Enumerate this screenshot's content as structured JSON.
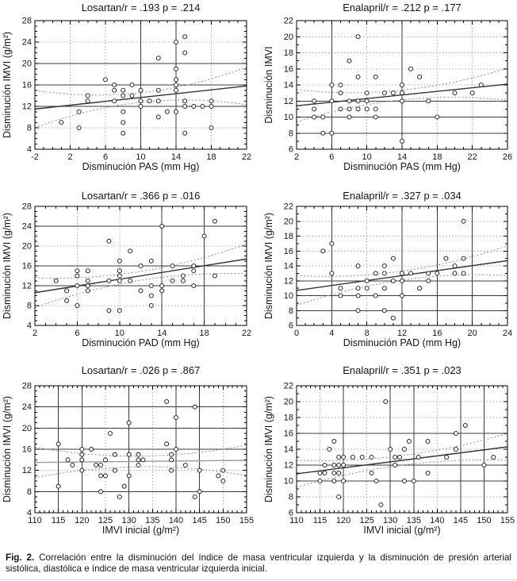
{
  "page": {
    "background": "#ffffff"
  },
  "colors": {
    "text": "#161616",
    "plot_border": "#000000",
    "grid_dotted": "#ababab",
    "grid_dark": "#3b3b3b",
    "point_stroke": "#2b2b2b",
    "point_fill": "#ffffff",
    "confidence_band": "#8f8f8f"
  },
  "caption": {
    "label": "Fig. 2.",
    "text": "Correlación entre la disminución del índice de masa ventricular izquierda y la disminución de presión arterial sistólica, diastólica e índice de masa ventricular izquierda inicial."
  },
  "chart_data": [
    {
      "id": "losartan-pas",
      "type": "scatter",
      "title": "Losartan/r = .193 p = .214",
      "xlabel": "Disminución PAS (mm Hg)",
      "ylabel": "Disminución IMVI (g/m²)",
      "xlim": [
        -2,
        22
      ],
      "xstep": 4,
      "ylim": [
        4,
        28
      ],
      "ystep": 4,
      "grid": true,
      "legend_position": "none",
      "points": [
        [
          1,
          9
        ],
        [
          3,
          8
        ],
        [
          3,
          11
        ],
        [
          4,
          13
        ],
        [
          4,
          14
        ],
        [
          6,
          17
        ],
        [
          7,
          13
        ],
        [
          7,
          15
        ],
        [
          7,
          16
        ],
        [
          8,
          7
        ],
        [
          8,
          9
        ],
        [
          8,
          11
        ],
        [
          8,
          14
        ],
        [
          8,
          15
        ],
        [
          9,
          14
        ],
        [
          9,
          16
        ],
        [
          10,
          12
        ],
        [
          10,
          13
        ],
        [
          10,
          15
        ],
        [
          11,
          13
        ],
        [
          12,
          10
        ],
        [
          12,
          13
        ],
        [
          12,
          15
        ],
        [
          12,
          21
        ],
        [
          13,
          11
        ],
        [
          14,
          11
        ],
        [
          14,
          15
        ],
        [
          14,
          16
        ],
        [
          14,
          17
        ],
        [
          14,
          19
        ],
        [
          14,
          24
        ],
        [
          15,
          7
        ],
        [
          15,
          12
        ],
        [
          15,
          13
        ],
        [
          15,
          22
        ],
        [
          15,
          25
        ],
        [
          16,
          12
        ],
        [
          17,
          12
        ],
        [
          18,
          8
        ],
        [
          18,
          12
        ],
        [
          18,
          13
        ]
      ],
      "regression": {
        "x1": -2,
        "y1": 11.5,
        "x2": 22,
        "y2": 15.8,
        "color": "#333333"
      },
      "ci_band": {
        "center": 0.9,
        "edge": 3.5
      },
      "dark_gridlines": {
        "x": [
          10,
          14
        ],
        "y": [
          12,
          16,
          20
        ]
      }
    },
    {
      "id": "enalapril-pas",
      "type": "scatter",
      "title": "Enalapril/r = .212 p = .177",
      "xlabel": "Disminución PAS (mm Hg)",
      "ylabel": "Disminución IMVI",
      "xlim": [
        2,
        26
      ],
      "xstep": 4,
      "ylim": [
        6,
        22
      ],
      "ystep": 2,
      "grid": true,
      "legend_position": "none",
      "points": [
        [
          4,
          10
        ],
        [
          4,
          11
        ],
        [
          4,
          12
        ],
        [
          5,
          8
        ],
        [
          5,
          10
        ],
        [
          6,
          8
        ],
        [
          6,
          12
        ],
        [
          6,
          14
        ],
        [
          7,
          11
        ],
        [
          7,
          13
        ],
        [
          7,
          14
        ],
        [
          8,
          10
        ],
        [
          8,
          11
        ],
        [
          8,
          12
        ],
        [
          8,
          17
        ],
        [
          9,
          11
        ],
        [
          9,
          12
        ],
        [
          9,
          15
        ],
        [
          9,
          20
        ],
        [
          10,
          11
        ],
        [
          10,
          12
        ],
        [
          10,
          13
        ],
        [
          11,
          10
        ],
        [
          11,
          11
        ],
        [
          11,
          15
        ],
        [
          12,
          13
        ],
        [
          13,
          13
        ],
        [
          14,
          7
        ],
        [
          14,
          12
        ],
        [
          14,
          13
        ],
        [
          14,
          14
        ],
        [
          15,
          16
        ],
        [
          16,
          15
        ],
        [
          17,
          12
        ],
        [
          18,
          10
        ],
        [
          20,
          13
        ],
        [
          22,
          13
        ],
        [
          23,
          14
        ]
      ],
      "regression": {
        "x1": 2,
        "y1": 11.4,
        "x2": 26,
        "y2": 14.1,
        "color": "#333333"
      },
      "ci_band": {
        "center": 0.6,
        "edge": 2.0
      },
      "dark_gridlines": {
        "x": [
          6,
          14
        ],
        "y": [
          8,
          10,
          12
        ]
      }
    },
    {
      "id": "losartan-pad",
      "type": "scatter",
      "title": "Losartan/r = .366 p = .016",
      "xlabel": "Disminución PAD (mm Hg)",
      "ylabel": "Disminución IMVI (g/m²)",
      "xlim": [
        2,
        22
      ],
      "xstep": 4,
      "ylim": [
        4,
        28
      ],
      "ystep": 4,
      "grid": true,
      "legend_position": "none",
      "points": [
        [
          4,
          13
        ],
        [
          5,
          9
        ],
        [
          5,
          11
        ],
        [
          6,
          8
        ],
        [
          6,
          12
        ],
        [
          6,
          14
        ],
        [
          6,
          15
        ],
        [
          7,
          11
        ],
        [
          7,
          12
        ],
        [
          7,
          13
        ],
        [
          7,
          15
        ],
        [
          9,
          7
        ],
        [
          9,
          13
        ],
        [
          9,
          21
        ],
        [
          10,
          7
        ],
        [
          10,
          13
        ],
        [
          10,
          14
        ],
        [
          10,
          15
        ],
        [
          10,
          17
        ],
        [
          11,
          13
        ],
        [
          11,
          19
        ],
        [
          12,
          11
        ],
        [
          12,
          16
        ],
        [
          13,
          8
        ],
        [
          13,
          10
        ],
        [
          13,
          12
        ],
        [
          13,
          17
        ],
        [
          14,
          11
        ],
        [
          14,
          12
        ],
        [
          14,
          24
        ],
        [
          15,
          13
        ],
        [
          15,
          16
        ],
        [
          16,
          13
        ],
        [
          16,
          14
        ],
        [
          17,
          12
        ],
        [
          17,
          15
        ],
        [
          17,
          16
        ],
        [
          18,
          22
        ],
        [
          19,
          14
        ],
        [
          19,
          25
        ]
      ],
      "regression": {
        "x1": 2,
        "y1": 10.6,
        "x2": 22,
        "y2": 17.4,
        "color": "#333333"
      },
      "ci_band": {
        "center": 0.9,
        "edge": 3.0
      },
      "dark_gridlines": {
        "x": [
          14,
          18
        ],
        "y": [
          12,
          16,
          24
        ]
      }
    },
    {
      "id": "enalapril-pad",
      "type": "scatter",
      "title": "Enalapril/r = .327 p = .034",
      "xlabel": "Disminución PAD (mm Hg)",
      "ylabel": "Disminución IMVI (g/m²)",
      "xlim": [
        0,
        24
      ],
      "xstep": 4,
      "ylim": [
        6,
        22
      ],
      "ystep": 2,
      "grid": true,
      "legend_position": "none",
      "points": [
        [
          3,
          16
        ],
        [
          4,
          13
        ],
        [
          4,
          17
        ],
        [
          5,
          10
        ],
        [
          5,
          11
        ],
        [
          7,
          8
        ],
        [
          7,
          10
        ],
        [
          7,
          11
        ],
        [
          7,
          14
        ],
        [
          8,
          11
        ],
        [
          8,
          12
        ],
        [
          9,
          10
        ],
        [
          9,
          13
        ],
        [
          10,
          8
        ],
        [
          10,
          11
        ],
        [
          10,
          13
        ],
        [
          10,
          14
        ],
        [
          11,
          7
        ],
        [
          11,
          12
        ],
        [
          11,
          15
        ],
        [
          12,
          10
        ],
        [
          12,
          12
        ],
        [
          12,
          13
        ],
        [
          13,
          13
        ],
        [
          14,
          11
        ],
        [
          15,
          12
        ],
        [
          15,
          13
        ],
        [
          16,
          13
        ],
        [
          17,
          15
        ],
        [
          18,
          13
        ],
        [
          18,
          14
        ],
        [
          19,
          13
        ],
        [
          19,
          15
        ],
        [
          19,
          20
        ]
      ],
      "regression": {
        "x1": 0,
        "y1": 10.7,
        "x2": 24,
        "y2": 14.7,
        "color": "#333333"
      },
      "ci_band": {
        "center": 0.6,
        "edge": 2.0
      },
      "dark_gridlines": {
        "x": [
          4,
          12,
          16,
          20
        ],
        "y": [
          8,
          10,
          12
        ]
      }
    },
    {
      "id": "losartan-imvi-inicial",
      "type": "scatter",
      "title": "Losartan/r = .026 p = .867",
      "xlabel": "IMVI inicial (g/m²)",
      "ylabel": "Disminución IMVI (g/m²)",
      "xlim": [
        110,
        155
      ],
      "xstep": 5,
      "ylim": [
        4,
        28
      ],
      "ystep": 4,
      "grid": true,
      "legend_position": "none",
      "points": [
        [
          115,
          9
        ],
        [
          115,
          17
        ],
        [
          117,
          14
        ],
        [
          118,
          13
        ],
        [
          120,
          12
        ],
        [
          120,
          14
        ],
        [
          120,
          15
        ],
        [
          120,
          16
        ],
        [
          122,
          16
        ],
        [
          123,
          13
        ],
        [
          124,
          8
        ],
        [
          124,
          11
        ],
        [
          124,
          13
        ],
        [
          125,
          11
        ],
        [
          125,
          14
        ],
        [
          126,
          19
        ],
        [
          127,
          12
        ],
        [
          127,
          15
        ],
        [
          128,
          7
        ],
        [
          129,
          9
        ],
        [
          130,
          11
        ],
        [
          130,
          15
        ],
        [
          130,
          21
        ],
        [
          132,
          13
        ],
        [
          132,
          14
        ],
        [
          132,
          15
        ],
        [
          133,
          14
        ],
        [
          138,
          17
        ],
        [
          138,
          25
        ],
        [
          139,
          12
        ],
        [
          139,
          14
        ],
        [
          139,
          15
        ],
        [
          140,
          16
        ],
        [
          140,
          22
        ],
        [
          142,
          13
        ],
        [
          144,
          7
        ],
        [
          144,
          24
        ],
        [
          145,
          8
        ],
        [
          145,
          12
        ],
        [
          149,
          11
        ],
        [
          150,
          10
        ],
        [
          150,
          12
        ]
      ],
      "regression": {
        "x1": 110,
        "y1": 13.5,
        "x2": 155,
        "y2": 13.9,
        "color": "#9a9a9a"
      },
      "ci_band": {
        "center": 1.0,
        "edge": 2.9
      },
      "dark_gridlines": {
        "x": [
          115,
          120,
          130,
          140,
          145
        ],
        "y": [
          8,
          16,
          20,
          24
        ]
      }
    },
    {
      "id": "enalapril-imvi-inicial",
      "type": "scatter",
      "title": "Enalapril/r = .351 p = .023",
      "xlabel": "IMVI inicial (g/m²)",
      "ylabel": "Disminución IMVI (g/m²)",
      "xlim": [
        110,
        155
      ],
      "xstep": 5,
      "ylim": [
        6,
        22
      ],
      "ystep": 2,
      "grid": true,
      "legend_position": "none",
      "points": [
        [
          115,
          10
        ],
        [
          115,
          11
        ],
        [
          116,
          11
        ],
        [
          116,
          12
        ],
        [
          117,
          14
        ],
        [
          118,
          10
        ],
        [
          118,
          11
        ],
        [
          118,
          12
        ],
        [
          118,
          15
        ],
        [
          119,
          8
        ],
        [
          119,
          11
        ],
        [
          119,
          12
        ],
        [
          119,
          13
        ],
        [
          120,
          10
        ],
        [
          120,
          12
        ],
        [
          120,
          13
        ],
        [
          122,
          13
        ],
        [
          124,
          13
        ],
        [
          126,
          11
        ],
        [
          126,
          13
        ],
        [
          127,
          10
        ],
        [
          128,
          7
        ],
        [
          129,
          20
        ],
        [
          130,
          14
        ],
        [
          131,
          12
        ],
        [
          131,
          13
        ],
        [
          132,
          13
        ],
        [
          133,
          10
        ],
        [
          133,
          14
        ],
        [
          134,
          15
        ],
        [
          135,
          10
        ],
        [
          136,
          13
        ],
        [
          138,
          11
        ],
        [
          138,
          15
        ],
        [
          142,
          13
        ],
        [
          144,
          14
        ],
        [
          144,
          16
        ],
        [
          146,
          17
        ],
        [
          150,
          12
        ],
        [
          152,
          13
        ]
      ],
      "regression": {
        "x1": 110,
        "y1": 10.9,
        "x2": 155,
        "y2": 14.3,
        "color": "#333333"
      },
      "ci_band": {
        "center": 0.6,
        "edge": 1.7
      },
      "dark_gridlines": {
        "x": [
          120,
          130,
          135,
          145,
          150
        ],
        "y": [
          10,
          12,
          16
        ]
      }
    }
  ]
}
